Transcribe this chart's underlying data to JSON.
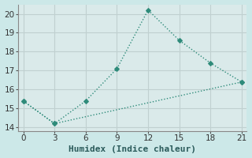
{
  "xlabel": "Humidex (Indice chaleur)",
  "line1_x": [
    0,
    3,
    6,
    9,
    12,
    15,
    18,
    21
  ],
  "line1_y": [
    15.4,
    14.2,
    15.4,
    17.1,
    20.2,
    18.6,
    17.4,
    16.4
  ],
  "line2_x": [
    0,
    3,
    21
  ],
  "line2_y": [
    15.4,
    14.2,
    16.4
  ],
  "line_color": "#2e8b7a",
  "bg_color": "#cce8e8",
  "grid_color": "#b0d8d8",
  "plot_bg": "#daeaea",
  "xlim": [
    -0.5,
    21.5
  ],
  "ylim": [
    13.8,
    20.5
  ],
  "xticks": [
    0,
    3,
    6,
    9,
    12,
    15,
    18,
    21
  ],
  "yticks": [
    14,
    15,
    16,
    17,
    18,
    19,
    20
  ],
  "xlabel_fontsize": 8,
  "tick_fontsize": 7.5
}
